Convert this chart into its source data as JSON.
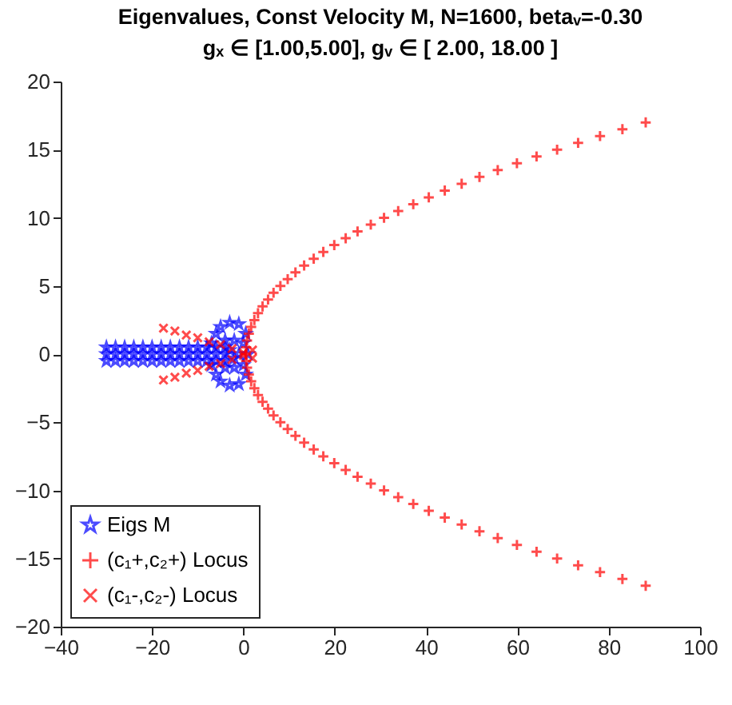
{
  "chart_data": {
    "type": "scatter",
    "title": "Eigenvalues, Const Velocity M, N=1600, betaᵥ=-0.30",
    "subtitle": "gₓ ∈ [1.00,5.00], gᵥ ∈ [ 2.00, 18.00 ]",
    "xlim": [
      -40,
      100
    ],
    "xticks": [
      -40,
      -20,
      0,
      20,
      40,
      60,
      80,
      100
    ],
    "ylim": [
      -20,
      20
    ],
    "yticks": [
      -20,
      -15,
      -10,
      -5,
      0,
      5,
      10,
      15,
      20
    ],
    "legend": "bottom left",
    "series": [
      {
        "name": "Eigs M",
        "color": "#0000ff",
        "marker": "star",
        "x": [
          -30,
          -28,
          -26,
          -24,
          -22,
          -20,
          -18,
          -16,
          -14,
          -12,
          -10,
          -8,
          -6,
          -4,
          -30,
          -28,
          -26,
          -24,
          -22,
          -20,
          -18,
          -16,
          -14,
          -12,
          -10,
          -8,
          -6,
          -4,
          -30,
          -28,
          -26,
          -24,
          -22,
          -20,
          -18,
          -16,
          -14,
          -12,
          -10,
          -8,
          -6,
          -4,
          -6,
          -6,
          -5,
          -5,
          -3,
          -3,
          -1,
          -1,
          0.5,
          0.5,
          1,
          -4,
          -4,
          -2,
          -2,
          0,
          0,
          -1,
          -3,
          -2,
          -7,
          -7
        ],
        "values": [
          0,
          0,
          0,
          0,
          0,
          0,
          0,
          0,
          0,
          0,
          0,
          0,
          0,
          0,
          0.5,
          0.5,
          0.5,
          0.5,
          0.5,
          0.5,
          0.5,
          0.5,
          0.5,
          0.5,
          0.5,
          0.5,
          0.5,
          0.5,
          -0.5,
          -0.5,
          -0.5,
          -0.5,
          -0.5,
          -0.5,
          -0.5,
          -0.5,
          -0.5,
          -0.5,
          -0.5,
          -0.5,
          -0.5,
          -0.5,
          1.5,
          -1.5,
          2,
          -2,
          2.3,
          -2.3,
          2.2,
          -2.2,
          1.5,
          -1.5,
          0,
          1,
          -1,
          1,
          -1,
          0.8,
          -0.8,
          0,
          0.3,
          -0.3,
          0.8,
          -0.8
        ]
      },
      {
        "name": "(c₁+,c₂+) Locus",
        "color": "#ff0000",
        "marker": "plus",
        "x": [
          88.1,
          83,
          78.1,
          73.3,
          68.7,
          64.2,
          59.9,
          55.7,
          51.7,
          47.8,
          44.1,
          40.6,
          37.2,
          33.9,
          30.8,
          27.9,
          25,
          22.4,
          19.9,
          17.5,
          15.4,
          13.3,
          11.4,
          9.7,
          8.1,
          6.6,
          5.4,
          4.2,
          3.2,
          2.4,
          1.7,
          1.2,
          0.8,
          0.6,
          0.5,
          0.6,
          0.8,
          1.2,
          1.7,
          2.4,
          3.2,
          4.2,
          5.4,
          6.6,
          8.1,
          9.7,
          11.4,
          13.3,
          15.4,
          17.5,
          19.9,
          22.4,
          25,
          27.9,
          30.8,
          33.9,
          37.2,
          40.6,
          44.1,
          47.8,
          51.7,
          55.7,
          59.9,
          64.2,
          68.7,
          73.3,
          78.1,
          83,
          88.1
        ],
        "values": [
          17,
          16.5,
          16,
          15.5,
          15,
          14.5,
          14,
          13.5,
          13,
          12.5,
          12,
          11.5,
          11,
          10.5,
          10,
          9.5,
          9,
          8.5,
          8,
          7.5,
          7,
          6.5,
          6,
          5.5,
          5,
          4.5,
          4,
          3.5,
          3,
          2.5,
          2,
          1.5,
          1,
          0.5,
          0,
          -0.5,
          -1,
          -1.5,
          -2,
          -2.5,
          -3,
          -3.5,
          -4,
          -4.5,
          -5,
          -5.5,
          -6,
          -6.5,
          -7,
          -7.5,
          -8,
          -8.5,
          -9,
          -9.5,
          -10,
          -10.5,
          -11,
          -11.5,
          -12,
          -12.5,
          -13,
          -13.5,
          -14,
          -14.5,
          -15,
          -15.5,
          -16,
          -16.5,
          -17
        ]
      },
      {
        "name": "(c₁-,c₂-) Locus",
        "color": "#ff0000",
        "marker": "x",
        "x": [
          -17.5,
          -15,
          -12.5,
          -10,
          -7.5,
          -5,
          -2.5,
          0,
          2,
          -17.5,
          -15,
          -12.5,
          -10,
          -7.5,
          -5,
          -2.5,
          0,
          2
        ],
        "values": [
          1.9,
          1.7,
          1.4,
          1.2,
          0.9,
          0.7,
          0.4,
          0.1,
          -0.3,
          -1.9,
          -1.7,
          -1.4,
          -1.2,
          -0.9,
          -0.7,
          -0.4,
          -0.1,
          0.3
        ]
      }
    ]
  }
}
